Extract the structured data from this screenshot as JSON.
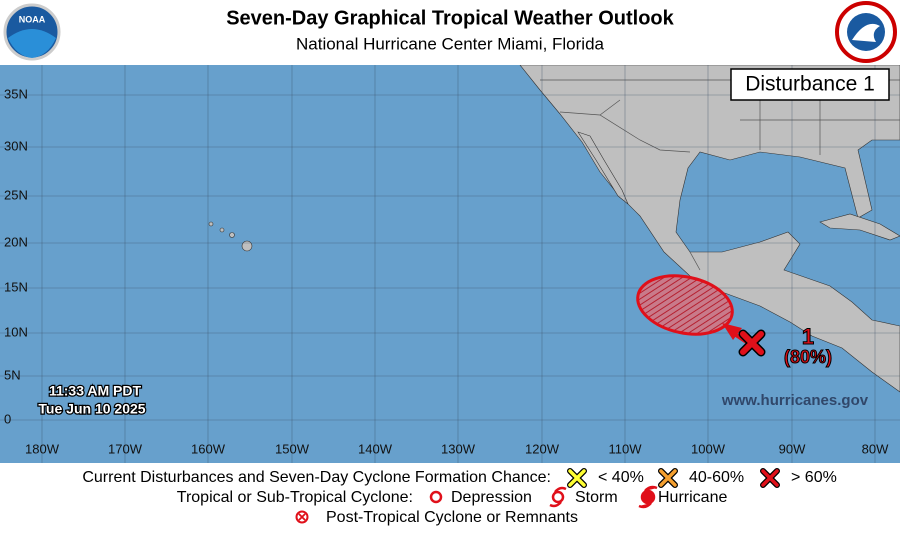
{
  "header": {
    "title": "Seven-Day Graphical Tropical Weather Outlook",
    "subtitle": "National Hurricane Center  Miami, Florida",
    "logo_text": "NOAA"
  },
  "map": {
    "panel_title": "Disturbance 1",
    "lat_labels": [
      "35N",
      "30N",
      "25N",
      "20N",
      "15N",
      "10N",
      "5N",
      "0"
    ],
    "lon_labels": [
      "180W",
      "170W",
      "160W",
      "150W",
      "140W",
      "130W",
      "120W",
      "110W",
      "100W",
      "90W",
      "80W"
    ],
    "time": "11:33 AM PDT",
    "date": "Tue Jun 10 2025",
    "website": "www.hurricanes.gov",
    "disturbances": [
      {
        "label": "1",
        "chance": "(80%)"
      }
    ]
  },
  "legend": {
    "row1_title": "Current Disturbances and Seven-Day Cyclone Formation Chance:",
    "low": "< 40%",
    "medium": "40-60%",
    "high": "> 60%",
    "row2_title": "Tropical or Sub-Tropical Cyclone:",
    "depression": "Depression",
    "storm": "Storm",
    "hurricane": "Hurricane",
    "post_tropical": "Post-Tropical Cyclone or Remnants"
  }
}
